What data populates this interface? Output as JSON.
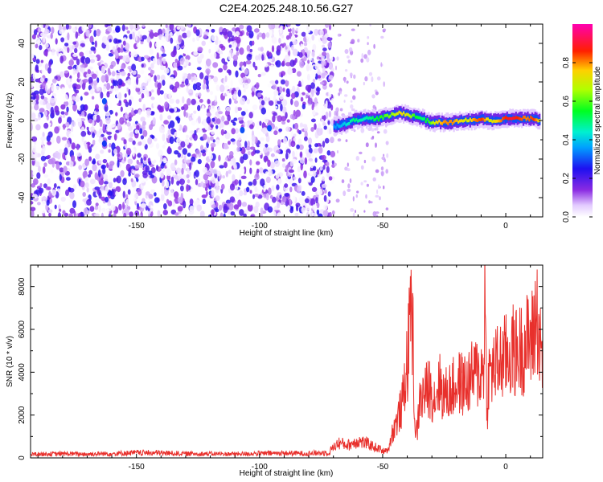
{
  "figure_title": "C2E4.2025.248.10.56.G27",
  "chart_data": [
    {
      "type": "heatmap",
      "title": "",
      "xlabel": "Height of straight line (km)",
      "ylabel": "Frequency (Hz)",
      "xlim": [
        -193,
        15
      ],
      "ylim": [
        -50,
        50
      ],
      "xticks": [
        -150,
        -100,
        -50,
        0
      ],
      "yticks": [
        -40,
        -20,
        0,
        20,
        40
      ],
      "xtick_labels": [
        "-150",
        "-100",
        "-50",
        "0"
      ],
      "ytick_labels": [
        "-40",
        "-20",
        "0",
        "20",
        "40"
      ],
      "colorbar": {
        "label": "Normalized spectral amplitude",
        "range": [
          0,
          1
        ],
        "ticks": [
          0.0,
          0.2,
          0.4,
          0.6,
          0.8
        ],
        "tick_labels": [
          "0.0",
          "0.2",
          "0.4",
          "0.6",
          "0.8"
        ],
        "colormap": "rainbow (white-violet-blue-cyan-green-yellow-red-magenta)"
      },
      "noise_region": {
        "x_start": -193,
        "x_end": -70,
        "freq_range": [
          -50,
          50
        ],
        "amplitude_range": [
          0.0,
          0.25
        ]
      },
      "sparse_region": {
        "x_start": -70,
        "x_end": -48
      },
      "signal_ridge": {
        "x": [
          -70,
          -66,
          -62,
          -58,
          -55,
          -52,
          -49,
          -46,
          -43,
          -40,
          -37,
          -34,
          -31,
          -28,
          -25,
          -22,
          -19,
          -16,
          -13,
          -10,
          -7,
          -4,
          -1,
          2,
          5,
          8,
          11,
          14
        ],
        "freq": [
          -3,
          -2,
          0,
          1,
          1,
          1,
          2,
          3,
          4,
          3,
          2,
          1,
          -1,
          -1,
          -1,
          -1,
          0,
          0,
          0,
          1,
          0,
          0,
          1,
          1,
          1,
          1,
          1,
          0
        ],
        "amplitude": [
          0.35,
          0.4,
          0.5,
          0.45,
          0.5,
          0.55,
          0.6,
          0.65,
          0.75,
          0.7,
          0.55,
          0.5,
          0.6,
          0.75,
          0.8,
          0.8,
          0.75,
          0.7,
          0.8,
          0.85,
          0.7,
          0.75,
          0.85,
          0.9,
          0.85,
          0.8,
          0.85,
          0.7
        ]
      },
      "noise_highlights": [
        {
          "x": -163,
          "freq": 10,
          "amplitude": 0.3
        },
        {
          "x": -163,
          "freq": -12,
          "amplitude": 0.28
        },
        {
          "x": -107,
          "freq": -5,
          "amplitude": 0.3
        },
        {
          "x": -96,
          "freq": -4,
          "amplitude": 0.3
        }
      ]
    },
    {
      "type": "line",
      "title": "",
      "xlabel": "Height of straight line (km)",
      "ylabel": "SNR (10 * v/v)",
      "xlim": [
        -193,
        15
      ],
      "ylim": [
        0,
        9000
      ],
      "xticks": [
        -150,
        -100,
        -50,
        0
      ],
      "yticks": [
        0,
        2000,
        4000,
        6000,
        8000
      ],
      "xtick_labels": [
        "-150",
        "-100",
        "-50",
        "0"
      ],
      "ytick_labels": [
        "0",
        "2000",
        "4000",
        "6000",
        "8000"
      ],
      "line_color": "#e8302c",
      "series": [
        {
          "x": [
            -193,
            -180,
            -170,
            -160,
            -150,
            -140,
            -130,
            -120,
            -110,
            -100,
            -90,
            -80,
            -72,
            -68,
            -64,
            -60,
            -56,
            -52,
            -48,
            -46,
            -44,
            -42,
            -41,
            -40,
            -39,
            -38.5,
            -38,
            -37.5,
            -37,
            -36,
            -35,
            -33,
            -31,
            -29,
            -27,
            -25,
            -22,
            -19,
            -16,
            -13,
            -10,
            -9,
            -8.5,
            -8,
            -7.5,
            -7,
            -5,
            -3,
            -1,
            1,
            3,
            5,
            7,
            9,
            11,
            12,
            13,
            14,
            15
          ],
          "y": [
            180,
            200,
            190,
            210,
            250,
            240,
            210,
            200,
            190,
            220,
            230,
            220,
            260,
            700,
            600,
            800,
            650,
            450,
            300,
            1200,
            1800,
            2500,
            3600,
            4500,
            5800,
            9000,
            6000,
            5000,
            1500,
            1200,
            2600,
            3000,
            3300,
            2800,
            3500,
            2900,
            3200,
            3500,
            3400,
            3900,
            4000,
            4200,
            8000,
            4200,
            2000,
            3800,
            4200,
            4400,
            4600,
            4800,
            5000,
            4900,
            5200,
            5400,
            5600,
            6500,
            6700,
            5000,
            4600
          ]
        }
      ]
    }
  ]
}
